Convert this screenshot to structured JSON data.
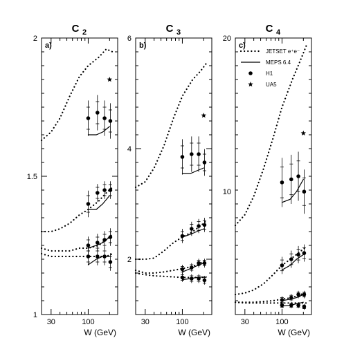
{
  "chart_data": [
    {
      "type": "line",
      "panel_label": "a)",
      "title": "C",
      "title_sub": "2",
      "xlabel": "W (GeV)",
      "ylabel": "",
      "x_scale": "log",
      "xlim": [
        22,
        260
      ],
      "ylim": [
        1,
        2
      ],
      "y_ticks": [
        1,
        1.5,
        2
      ],
      "y_tick_labels": [
        "1",
        "1.5",
        "2"
      ],
      "x_ticks": [
        30,
        100
      ],
      "x_tick_labels": [
        "30",
        "100"
      ],
      "series": [
        {
          "name": "JETSET e⁺e⁻",
          "style": "dotted",
          "x": [
            22,
            30,
            40,
            55,
            75,
            100,
            140,
            180,
            220
          ],
          "y": [
            1.63,
            1.66,
            1.71,
            1.79,
            1.86,
            1.9,
            1.93,
            1.96,
            1.95
          ]
        },
        {
          "style": "dotted",
          "x": [
            22,
            30,
            40,
            55,
            75,
            100,
            140,
            180,
            220
          ],
          "y": [
            1.3,
            1.3,
            1.31,
            1.33,
            1.36,
            1.38,
            1.41,
            1.44,
            1.46
          ]
        },
        {
          "style": "dotted",
          "x": [
            22,
            30,
            40,
            55,
            75,
            100,
            140,
            180,
            220
          ],
          "y": [
            1.24,
            1.23,
            1.23,
            1.23,
            1.24,
            1.24,
            1.25,
            1.27,
            1.29
          ]
        },
        {
          "style": "dotted",
          "x": [
            22,
            30,
            40,
            55,
            75,
            100,
            140,
            180,
            220
          ],
          "y": [
            1.22,
            1.21,
            1.21,
            1.21,
            1.21,
            1.21,
            1.21,
            1.21,
            1.22
          ]
        },
        {
          "name": "MEPS 6.4",
          "style": "solid",
          "x": [
            100,
            130,
            160,
            200
          ],
          "y": [
            1.65,
            1.65,
            1.66,
            1.68
          ]
        },
        {
          "style": "solid",
          "x": [
            100,
            130,
            160,
            200
          ],
          "y": [
            1.38,
            1.38,
            1.4,
            1.43
          ]
        },
        {
          "style": "solid",
          "x": [
            100,
            130,
            160,
            200
          ],
          "y": [
            1.24,
            1.25,
            1.26,
            1.28
          ]
        },
        {
          "style": "solid",
          "x": [
            100,
            130,
            160,
            200
          ],
          "y": [
            1.18,
            1.2,
            1.21,
            1.21
          ]
        },
        {
          "name": "H1",
          "style": "points",
          "marker": "circle",
          "x": [
            100,
            135,
            170,
            205
          ],
          "y": [
            1.71,
            1.73,
            1.71,
            1.7
          ],
          "err": [
            0.04,
            0.04,
            0.04,
            0.04
          ]
        },
        {
          "style": "points",
          "marker": "circle",
          "x": [
            100,
            135,
            170,
            205
          ],
          "y": [
            1.4,
            1.44,
            1.45,
            1.45
          ],
          "err": [
            0.03,
            0.02,
            0.02,
            0.02
          ]
        },
        {
          "style": "points",
          "marker": "circle",
          "x": [
            100,
            135,
            170,
            205
          ],
          "y": [
            1.25,
            1.26,
            1.27,
            1.28
          ],
          "err": [
            0.02,
            0.02,
            0.02,
            0.02
          ]
        },
        {
          "style": "points",
          "marker": "circle",
          "x": [
            100,
            135,
            170,
            205
          ],
          "y": [
            1.21,
            1.21,
            1.21,
            1.19
          ],
          "err": [
            0.02,
            0.02,
            0.02,
            0.02
          ]
        },
        {
          "name": "UA5",
          "style": "points",
          "marker": "star",
          "x": [
            200
          ],
          "y": [
            1.85
          ]
        }
      ],
      "legend_position": "top-right"
    },
    {
      "type": "line",
      "panel_label": "b)",
      "title": "C",
      "title_sub": "3",
      "xlabel": "W (GeV)",
      "ylabel": "",
      "x_scale": "log",
      "xlim": [
        22,
        260
      ],
      "ylim": [
        1,
        6
      ],
      "y_ticks": [
        2,
        4,
        6
      ],
      "y_tick_labels": [
        "2",
        "4",
        "6"
      ],
      "x_ticks": [
        30,
        100
      ],
      "x_tick_labels": [
        "30",
        "100"
      ],
      "series": [
        {
          "name": "JETSET e⁺e⁻",
          "style": "dotted",
          "x": [
            22,
            30,
            40,
            55,
            75,
            100,
            140,
            180,
            220
          ],
          "y": [
            3.3,
            3.4,
            3.65,
            4.05,
            4.55,
            4.95,
            5.25,
            5.4,
            5.55
          ]
        },
        {
          "style": "dotted",
          "x": [
            22,
            30,
            40,
            55,
            75,
            100,
            140,
            180,
            220
          ],
          "y": [
            2,
            2,
            2.02,
            2.15,
            2.3,
            2.4,
            2.5,
            2.6,
            2.7
          ]
        },
        {
          "style": "dotted",
          "x": [
            22,
            30,
            40,
            55,
            75,
            100,
            140,
            180,
            220
          ],
          "y": [
            1.8,
            1.75,
            1.75,
            1.77,
            1.8,
            1.83,
            1.87,
            1.93,
            1.98
          ]
        },
        {
          "style": "dotted",
          "x": [
            22,
            30,
            40,
            55,
            75,
            100,
            140,
            180,
            220
          ],
          "y": [
            1.75,
            1.72,
            1.7,
            1.69,
            1.68,
            1.67,
            1.67,
            1.67,
            1.68
          ]
        },
        {
          "name": "MEPS 6.4",
          "style": "solid",
          "x": [
            100,
            130,
            160,
            200
          ],
          "y": [
            3.55,
            3.55,
            3.6,
            3.65
          ]
        },
        {
          "style": "solid",
          "x": [
            100,
            130,
            160,
            200
          ],
          "y": [
            2.4,
            2.45,
            2.5,
            2.55
          ]
        },
        {
          "style": "solid",
          "x": [
            100,
            130,
            160,
            200
          ],
          "y": [
            1.77,
            1.83,
            1.88,
            1.93
          ]
        },
        {
          "style": "solid",
          "x": [
            100,
            130,
            160,
            200
          ],
          "y": [
            1.63,
            1.65,
            1.67,
            1.68
          ]
        },
        {
          "name": "H1",
          "style": "points",
          "marker": "circle",
          "x": [
            100,
            135,
            170,
            205
          ],
          "y": [
            3.85,
            3.9,
            3.9,
            3.75
          ],
          "err": [
            0.2,
            0.2,
            0.2,
            0.15
          ]
        },
        {
          "style": "points",
          "marker": "circle",
          "x": [
            100,
            135,
            170,
            205
          ],
          "y": [
            2.42,
            2.55,
            2.6,
            2.62
          ],
          "err": [
            0.08,
            0.08,
            0.08,
            0.08
          ]
        },
        {
          "style": "points",
          "marker": "circle",
          "x": [
            100,
            135,
            170,
            205
          ],
          "y": [
            1.82,
            1.85,
            1.93,
            1.93
          ],
          "err": [
            0.05,
            0.05,
            0.05,
            0.05
          ]
        },
        {
          "style": "points",
          "marker": "circle",
          "x": [
            100,
            135,
            170,
            205
          ],
          "y": [
            1.67,
            1.65,
            1.65,
            1.62
          ],
          "err": [
            0.05,
            0.05,
            0.05,
            0.05
          ]
        },
        {
          "name": "UA5",
          "style": "points",
          "marker": "star",
          "x": [
            200
          ],
          "y": [
            4.6
          ]
        }
      ],
      "legend_position": "top-right"
    },
    {
      "type": "line",
      "panel_label": "c)",
      "title": "C",
      "title_sub": "4",
      "xlabel": "W (GeV)",
      "ylabel": "",
      "x_scale": "log",
      "xlim": [
        22,
        260
      ],
      "ylim": [
        2,
        20
      ],
      "y_ticks": [
        10,
        20
      ],
      "y_tick_labels": [
        "10",
        "20"
      ],
      "x_ticks": [
        30,
        100
      ],
      "x_tick_labels": [
        "30",
        "100"
      ],
      "series": [
        {
          "name": "JETSET e⁺e⁻",
          "style": "dotted",
          "x": [
            22,
            30,
            40,
            55,
            75,
            100,
            140,
            180,
            220
          ],
          "y": [
            7.8,
            8.5,
            9.7,
            11.5,
            13.5,
            15.5,
            17.3,
            18.5,
            19.5
          ]
        },
        {
          "style": "dotted",
          "x": [
            22,
            30,
            40,
            55,
            75,
            100,
            140,
            180,
            220
          ],
          "y": [
            3.3,
            3.4,
            3.6,
            4,
            4.6,
            5.2,
            5.7,
            6.1,
            6.4
          ]
        },
        {
          "style": "dotted",
          "x": [
            22,
            30,
            40,
            55,
            75,
            100,
            140,
            180,
            220
          ],
          "y": [
            2.8,
            2.8,
            2.8,
            2.85,
            2.9,
            3,
            3.1,
            3.3,
            3.4
          ]
        },
        {
          "style": "dotted",
          "x": [
            22,
            30,
            40,
            55,
            75,
            100,
            140,
            180,
            220
          ],
          "y": [
            2.8,
            2.75,
            2.75,
            2.75,
            2.75,
            2.75,
            2.75,
            2.75,
            2.75
          ]
        },
        {
          "name": "MEPS 6.4",
          "style": "solid",
          "x": [
            100,
            130,
            160,
            200
          ],
          "y": [
            9.3,
            9.5,
            10,
            10.8
          ]
        },
        {
          "style": "solid",
          "x": [
            100,
            130,
            160,
            200
          ],
          "y": [
            4.9,
            5.2,
            5.6,
            5.9
          ]
        },
        {
          "style": "solid",
          "x": [
            100,
            130,
            160,
            200
          ],
          "y": [
            2.9,
            3,
            3.1,
            3.3
          ]
        },
        {
          "style": "solid",
          "x": [
            100,
            130,
            160,
            200
          ],
          "y": [
            2.55,
            2.6,
            2.7,
            2.8
          ]
        },
        {
          "name": "H1",
          "style": "points",
          "marker": "circle",
          "x": [
            100,
            135,
            170,
            205
          ],
          "y": [
            10.6,
            10.8,
            11,
            10
          ],
          "err": [
            1,
            1,
            1,
            0.9
          ]
        },
        {
          "style": "points",
          "marker": "circle",
          "x": [
            100,
            135,
            170,
            205
          ],
          "y": [
            5.2,
            5.6,
            5.9,
            6
          ],
          "err": [
            0.35,
            0.35,
            0.35,
            0.35
          ]
        },
        {
          "style": "points",
          "marker": "circle",
          "x": [
            100,
            135,
            170,
            205
          ],
          "y": [
            2.95,
            3.1,
            3.3,
            3.3
          ],
          "err": [
            0.15,
            0.15,
            0.15,
            0.15
          ]
        },
        {
          "style": "points",
          "marker": "circle",
          "x": [
            100,
            135,
            170,
            205
          ],
          "y": [
            2.6,
            2.6,
            2.6,
            2.5
          ],
          "err": [
            0.12,
            0.12,
            0.12,
            0.12
          ]
        },
        {
          "name": "UA5",
          "style": "points",
          "marker": "star",
          "x": [
            200
          ],
          "y": [
            13.8
          ]
        }
      ],
      "legend_position": "top-right",
      "legend": [
        {
          "label": "JETSET e⁺e⁻",
          "style": "dotted"
        },
        {
          "label": "MEPS 6.4",
          "style": "solid"
        },
        {
          "label": "H1",
          "style": "circle"
        },
        {
          "label": "UA5",
          "style": "star"
        }
      ]
    }
  ]
}
